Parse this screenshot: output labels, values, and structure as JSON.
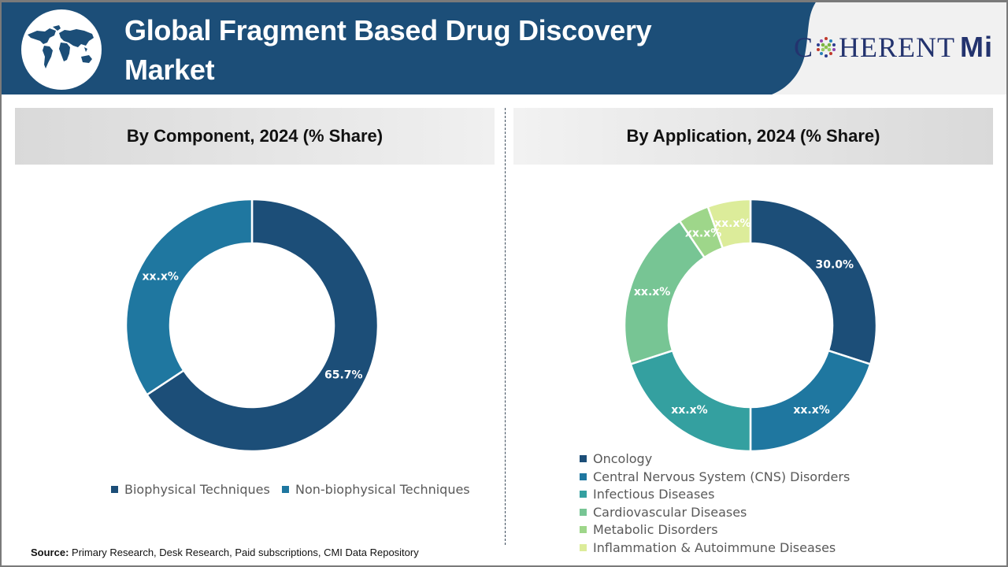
{
  "header": {
    "title": "Global Fragment Based Drug Discovery Market",
    "title_line1": "Global Fragment Based Drug Discovery",
    "title_line2": "Market",
    "brand_prefix": "C",
    "brand_suffix": "HERENT",
    "brand_mi": "Mi",
    "logo_icon": "globe-icon"
  },
  "colors": {
    "header_bg": "#1c4e78",
    "logo_panel_bg": "#f1f1f1",
    "brand_text": "#23336e"
  },
  "sections": {
    "component_title": "By Component, 2024 (% Share)",
    "application_title": "By Application, 2024 (% Share)"
  },
  "source": {
    "label": "Source:",
    "text": " Primary Research, Desk Research, Paid subscriptions, CMI Data Repository"
  },
  "chart_data": [
    {
      "type": "pie",
      "variant": "donut",
      "title": "By Component, 2024 (% Share)",
      "categories": [
        "Biophysical Techniques",
        "Non-biophysical Techniques"
      ],
      "values": [
        65.7,
        34.3
      ],
      "labels": [
        "65.7%",
        "xx.x%"
      ],
      "colors": [
        "#1c4e78",
        "#1f77a0"
      ],
      "legend_position": "bottom"
    },
    {
      "type": "pie",
      "variant": "donut",
      "title": "By Application, 2024 (% Share)",
      "categories": [
        "Oncology",
        "Central Nervous System (CNS) Disorders",
        "Infectious Diseases",
        "Cardiovascular Diseases",
        "Metabolic Disorders",
        "Inflammation & Autoimmune Diseases"
      ],
      "values": [
        30.0,
        20.0,
        20.0,
        20.5,
        4.0,
        5.5
      ],
      "labels": [
        "30.0%",
        "xx.x%",
        "xx.x%",
        "xx.x%",
        "xx.x%",
        "xx.x%"
      ],
      "colors": [
        "#1c4e78",
        "#1f77a0",
        "#34a0a0",
        "#77c594",
        "#9ed68a",
        "#dcec9a"
      ],
      "legend_position": "bottom-left"
    }
  ]
}
